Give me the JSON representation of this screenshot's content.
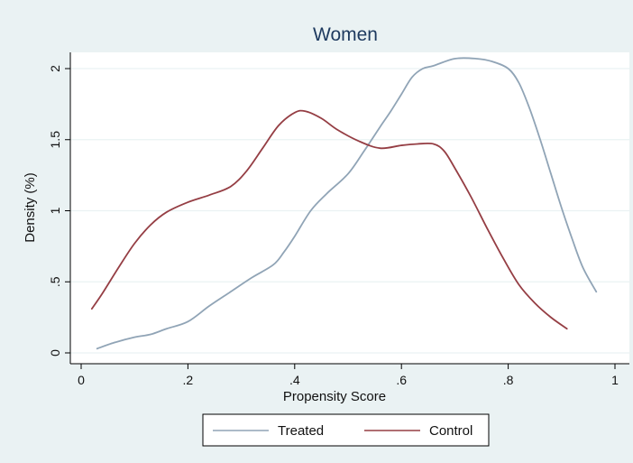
{
  "chart_data": {
    "type": "line",
    "title": "Women",
    "xlabel": "Propensity Score",
    "ylabel": "Density (%)",
    "xlim": [
      0,
      1
    ],
    "ylim": [
      0,
      2.1
    ],
    "x_ticks": [
      0,
      0.2,
      0.4,
      0.6,
      0.8,
      1
    ],
    "x_tick_labels": [
      "0",
      ".2",
      ".4",
      ".6",
      ".8",
      "1"
    ],
    "y_ticks": [
      0,
      0.5,
      1,
      1.5,
      2
    ],
    "y_tick_labels": [
      "0",
      ".5",
      "1",
      "1.5",
      "2"
    ],
    "grid": "horizontal",
    "legend_position": "bottom",
    "colors": {
      "background": "#eaf2f3",
      "plot_background": "#ffffff",
      "gridline": "#eaf2f3",
      "axis": "#000000",
      "title": "#1e3a5f"
    },
    "series": [
      {
        "name": "Treated",
        "color": "#90a4b6",
        "x": [
          0.03,
          0.06,
          0.1,
          0.13,
          0.16,
          0.2,
          0.24,
          0.28,
          0.32,
          0.36,
          0.38,
          0.4,
          0.43,
          0.46,
          0.5,
          0.53,
          0.56,
          0.58,
          0.6,
          0.62,
          0.64,
          0.66,
          0.7,
          0.74,
          0.77,
          0.8,
          0.82,
          0.84,
          0.86,
          0.88,
          0.9,
          0.92,
          0.94,
          0.965
        ],
        "y": [
          0.03,
          0.07,
          0.11,
          0.13,
          0.17,
          0.22,
          0.33,
          0.43,
          0.53,
          0.62,
          0.71,
          0.82,
          1.0,
          1.12,
          1.26,
          1.42,
          1.59,
          1.7,
          1.82,
          1.94,
          2.0,
          2.02,
          2.07,
          2.07,
          2.05,
          2.0,
          1.9,
          1.72,
          1.5,
          1.26,
          1.02,
          0.8,
          0.6,
          0.43
        ]
      },
      {
        "name": "Control",
        "color": "#953e44",
        "x": [
          0.02,
          0.04,
          0.07,
          0.1,
          0.13,
          0.16,
          0.2,
          0.24,
          0.28,
          0.31,
          0.34,
          0.37,
          0.4,
          0.42,
          0.45,
          0.48,
          0.52,
          0.56,
          0.6,
          0.63,
          0.66,
          0.68,
          0.7,
          0.73,
          0.76,
          0.79,
          0.82,
          0.85,
          0.88,
          0.91
        ],
        "y": [
          0.31,
          0.42,
          0.6,
          0.77,
          0.9,
          0.99,
          1.06,
          1.11,
          1.17,
          1.28,
          1.44,
          1.6,
          1.69,
          1.7,
          1.65,
          1.57,
          1.49,
          1.44,
          1.46,
          1.47,
          1.47,
          1.42,
          1.3,
          1.1,
          0.88,
          0.67,
          0.48,
          0.35,
          0.25,
          0.17
        ]
      }
    ]
  }
}
